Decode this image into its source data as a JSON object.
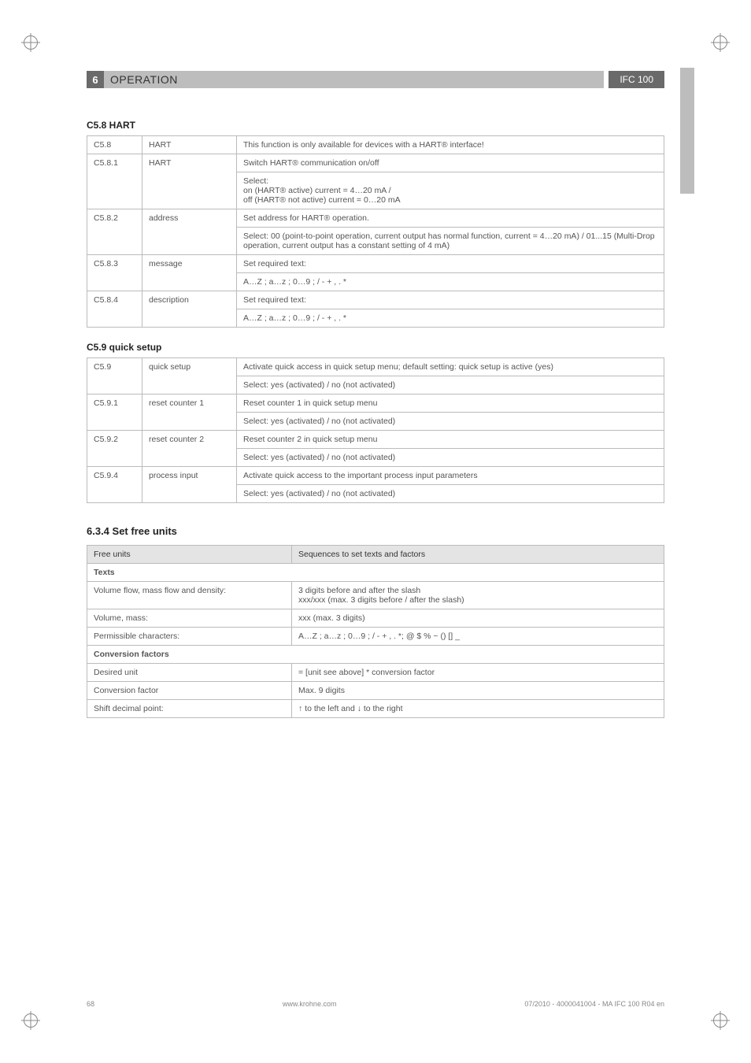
{
  "header": {
    "section_number": "6",
    "title": "OPERATION",
    "badge": "IFC 100"
  },
  "hart": {
    "heading": "C5.8 HART",
    "rows": [
      {
        "id": "C5.8",
        "name": "HART",
        "desc": "This function is only available for devices with a HART® interface!"
      },
      {
        "id": "C5.8.1",
        "name": "HART",
        "desc": "Switch HART® communication on/off"
      },
      {
        "id": "",
        "name": "",
        "desc": "Select:\non (HART® active) current = 4…20 mA /\noff (HART® not active) current = 0…20 mA"
      },
      {
        "id": "C5.8.2",
        "name": "address",
        "desc": "Set address for HART® operation."
      },
      {
        "id": "",
        "name": "",
        "desc": "Select: 00 (point-to-point operation, current output has normal function, current = 4…20 mA) / 01...15 (Multi-Drop operation, current output has a constant setting of 4 mA)"
      },
      {
        "id": "C5.8.3",
        "name": "message",
        "desc": "Set required text:"
      },
      {
        "id": "",
        "name": "",
        "desc": "A…Z ; a…z ; 0…9 ; / - + , . *"
      },
      {
        "id": "C5.8.4",
        "name": "description",
        "desc": "Set required text:"
      },
      {
        "id": "",
        "name": "",
        "desc": "A…Z ; a…z ; 0…9 ; / - + , . *"
      }
    ]
  },
  "quick": {
    "heading": "C5.9 quick setup",
    "rows": [
      {
        "id": "C5.9",
        "name": "quick setup",
        "desc": "Activate quick access in quick setup menu; default setting: quick setup is active (yes)"
      },
      {
        "id": "",
        "name": "",
        "desc": "Select: yes (activated) / no (not activated)"
      },
      {
        "id": "C5.9.1",
        "name": "reset counter 1",
        "desc": "Reset counter 1 in quick setup menu"
      },
      {
        "id": "",
        "name": "",
        "desc": "Select: yes (activated) / no (not activated)"
      },
      {
        "id": "C5.9.2",
        "name": "reset counter 2",
        "desc": "Reset counter 2 in quick setup menu"
      },
      {
        "id": "",
        "name": "",
        "desc": "Select: yes (activated) / no (not activated)"
      },
      {
        "id": "C5.9.4",
        "name": "process input",
        "desc": "Activate quick access to the important process input parameters"
      },
      {
        "id": "",
        "name": "",
        "desc": "Select: yes (activated) / no (not activated)"
      }
    ]
  },
  "units": {
    "heading": "6.3.4  Set free units",
    "header_left": "Free units",
    "header_right": "Sequences to set texts and factors",
    "section_texts": "Texts",
    "section_conv": "Conversion factors",
    "rows_texts": [
      {
        "left": "Volume flow, mass flow and density:",
        "right": "3 digits before and after the slash\nxxx/xxx (max. 3 digits before / after the slash)"
      },
      {
        "left": "Volume, mass:",
        "right": "xxx (max. 3 digits)"
      },
      {
        "left": "Permissible characters:",
        "right": "A…Z ; a…z ; 0…9 ; / - + , . *; @ $ % ~ () [] _"
      }
    ],
    "rows_conv": [
      {
        "left": "Desired unit",
        "right": "= [unit see above] * conversion factor"
      },
      {
        "left": "Conversion factor",
        "right": "Max. 9 digits"
      },
      {
        "left": "Shift decimal point:",
        "right": "↑ to the left and ↓ to the right"
      }
    ]
  },
  "footer": {
    "page": "68",
    "site": "www.krohne.com",
    "doc": "07/2010 - 4000041004 - MA IFC 100 R04 en"
  },
  "colors": {
    "header_dark": "#6a6a6a",
    "header_light": "#bdbdbd",
    "border": "#bbbbbb",
    "text_muted": "#555555",
    "th_bg": "#e4e4e4"
  }
}
